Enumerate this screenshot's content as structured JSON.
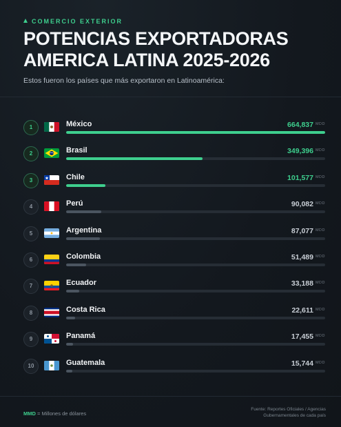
{
  "header": {
    "kicker": "COMERCIO EXTERIOR",
    "title_line1": "POTENCIAS EXPORTADORAS",
    "title_line2": "AMERICA LATINA 2025-2026",
    "subtitle": "Estos fueron los países que más exportaron en Latinoamérica:"
  },
  "colors": {
    "accent": "#3ecf8e",
    "muted_bar": "#4b5560",
    "track": "#262d35",
    "background": "#14191f"
  },
  "chart_data": {
    "type": "bar",
    "orientation": "horizontal",
    "unit": "MDD",
    "categories": [
      "México",
      "Brasil",
      "Chile",
      "Perú",
      "Argentina",
      "Colombia",
      "Ecuador",
      "Costa Rica",
      "Panamá",
      "Guatemala"
    ],
    "values": [
      664837,
      349396,
      101577,
      90082,
      87077,
      51489,
      33188,
      22611,
      17455,
      15744
    ],
    "value_labels": [
      "664,837",
      "349,396",
      "101,577",
      "90,082",
      "87,077",
      "51,489",
      "33,188",
      "22,611",
      "17,455",
      "15,744"
    ],
    "ranks": [
      "1",
      "2",
      "3",
      "4",
      "5",
      "6",
      "7",
      "8",
      "9",
      "10"
    ],
    "flags": [
      "mexico-flag",
      "brazil-flag",
      "chile-flag",
      "peru-flag",
      "argentina-flag",
      "colombia-flag",
      "ecuador-flag",
      "costa-rica-flag",
      "panama-flag",
      "guatemala-flag"
    ],
    "highlight_top": 3,
    "xlim": [
      0,
      664837
    ]
  },
  "footer": {
    "legend_abbr": "MMD",
    "legend_text": " = Millones de dólares",
    "source_line1": "Fuente: Reportes Oficiales / Agencias",
    "source_line2": "Gubernamentales de cada país"
  }
}
